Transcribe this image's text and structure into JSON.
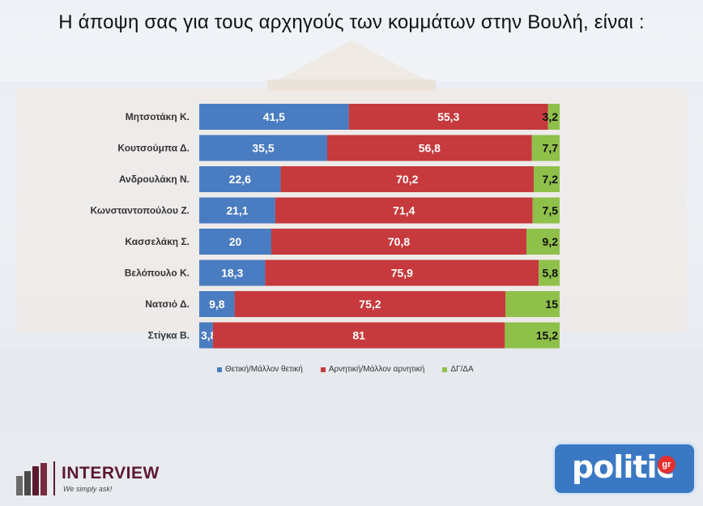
{
  "title": "Η άποψη σας για τους αρχηγούς των κομμάτων στην Βουλή,  είναι :",
  "colors": {
    "positive": "#4a7cc1",
    "negative": "#c63a3d",
    "unsure": "#8fc04a"
  },
  "chart_data": {
    "type": "bar",
    "orientation": "horizontal",
    "stacked": true,
    "categories": [
      "Μητσοτάκη Κ.",
      "Κουτσούμπα Δ.",
      "Ανδρουλάκη Ν.",
      "Κωνσταντοπούλου Ζ.",
      "Κασσελάκη Σ.",
      "Βελόπουλο Κ.",
      "Νατσιό Δ.",
      "Στίγκα Β."
    ],
    "series": [
      {
        "name": "Θετική/Μάλλον θετική",
        "values": [
          41.5,
          35.5,
          22.6,
          21.1,
          20,
          18.3,
          9.8,
          3.8
        ],
        "labels": [
          "41,5",
          "35,5",
          "22,6",
          "21,1",
          "20",
          "18,3",
          "9,8",
          "3,8"
        ]
      },
      {
        "name": "Αρνητική/Μάλλον αρνητική",
        "values": [
          55.3,
          56.8,
          70.2,
          71.4,
          70.8,
          75.9,
          75.2,
          81
        ],
        "labels": [
          "55,3",
          "56,8",
          "70,2",
          "71,4",
          "70,8",
          "75,9",
          "75,2",
          "81"
        ]
      },
      {
        "name": "ΔΓ/ΔΑ",
        "values": [
          3.2,
          7.7,
          7.2,
          7.5,
          9.2,
          5.8,
          15,
          15.2
        ],
        "labels": [
          "3,2",
          "7,7",
          "7,2",
          "7,5",
          "9,2",
          "5,8",
          "15",
          "15,2"
        ]
      }
    ],
    "xlim": [
      0,
      100
    ],
    "legend": "bottom",
    "grid": false
  },
  "branding": {
    "interview_name": "INTERVIEW",
    "interview_tagline": "We simply ask!",
    "politic_name": "politic",
    "politic_suffix": "gr"
  }
}
